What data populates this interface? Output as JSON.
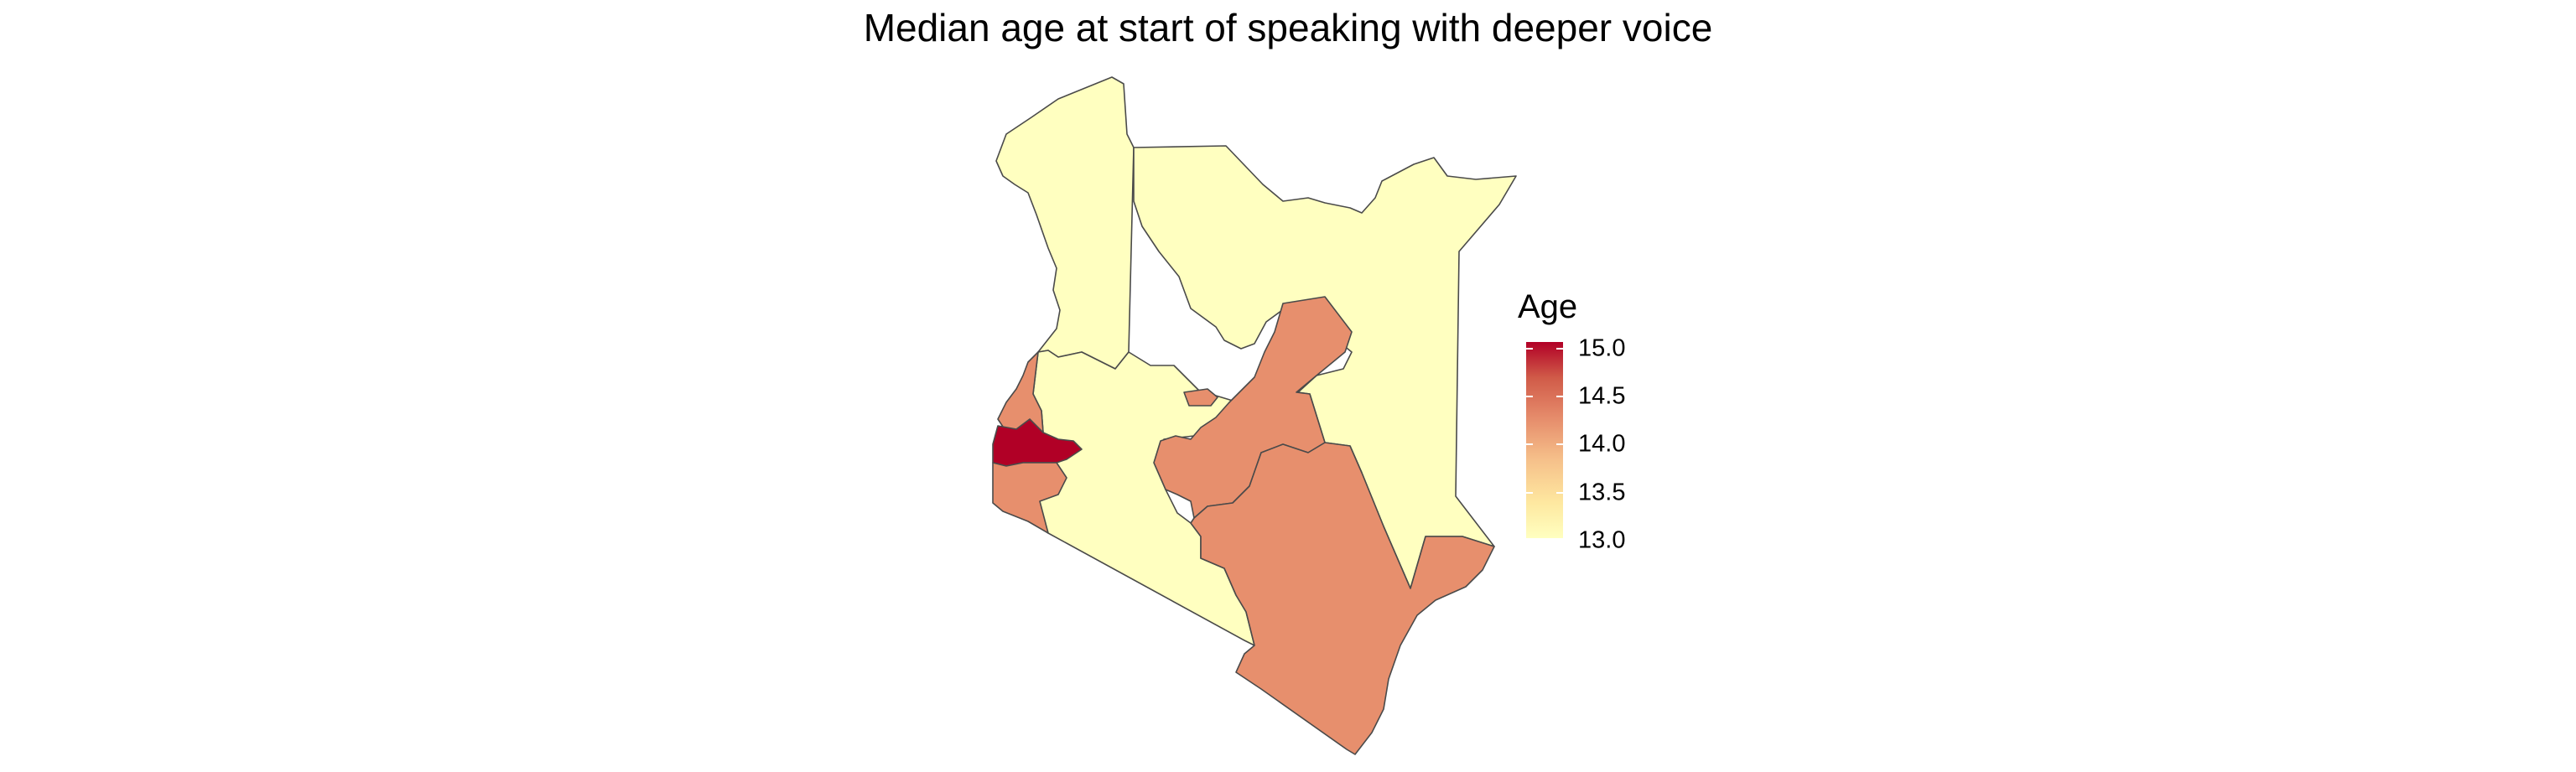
{
  "title": "Median age at start of speaking with deeper voice",
  "legend": {
    "title": "Age",
    "ticks": [
      "15.0",
      "14.5",
      "14.0",
      "13.5",
      "13.0"
    ],
    "range": [
      13.0,
      15.0
    ],
    "colors": {
      "low": "#ffffc0",
      "mid": "#e0805f",
      "high": "#b10026"
    }
  },
  "map": {
    "regions": [
      {
        "id": "northwest",
        "value": 13.0
      },
      {
        "id": "northeast",
        "value": 13.0
      },
      {
        "id": "rift-valley-south",
        "value": 13.0
      },
      {
        "id": "nyanza-north",
        "value": 14.2
      },
      {
        "id": "kisumu",
        "value": 15.0
      },
      {
        "id": "nyanza-south",
        "value": 14.2
      },
      {
        "id": "central-east",
        "value": 14.2
      },
      {
        "id": "coast",
        "value": 14.2
      },
      {
        "id": "central-small",
        "value": 14.2
      }
    ]
  }
}
